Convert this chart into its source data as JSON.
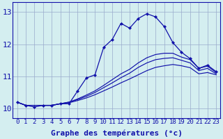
{
  "xlabel": "Graphe des températures (°c)",
  "bg_color": "#d4eef0",
  "grid_color": "#99aacc",
  "line_color": "#1111aa",
  "xlim": [
    -0.5,
    23.5
  ],
  "ylim": [
    9.7,
    13.3
  ],
  "yticks": [
    10,
    11,
    12,
    13
  ],
  "xticks": [
    0,
    1,
    2,
    3,
    4,
    5,
    6,
    7,
    8,
    9,
    10,
    11,
    12,
    13,
    14,
    15,
    16,
    17,
    18,
    19,
    20,
    21,
    22,
    23
  ],
  "series": [
    [
      10.2,
      10.1,
      10.05,
      10.1,
      10.1,
      10.15,
      10.15,
      10.55,
      10.95,
      11.05,
      11.9,
      12.15,
      12.65,
      12.5,
      12.8,
      12.95,
      12.85,
      12.55,
      12.05,
      11.75,
      11.55,
      11.25,
      11.35,
      11.15
    ],
    [
      10.2,
      10.1,
      10.1,
      10.1,
      10.1,
      10.15,
      10.2,
      10.3,
      10.42,
      10.55,
      10.72,
      10.9,
      11.08,
      11.22,
      11.42,
      11.58,
      11.68,
      11.72,
      11.72,
      11.6,
      11.52,
      11.25,
      11.32,
      11.12
    ],
    [
      10.2,
      10.1,
      10.1,
      10.1,
      10.1,
      10.15,
      10.2,
      10.28,
      10.38,
      10.5,
      10.65,
      10.8,
      10.96,
      11.1,
      11.28,
      11.42,
      11.52,
      11.56,
      11.58,
      11.5,
      11.42,
      11.18,
      11.25,
      11.08
    ],
    [
      10.2,
      10.1,
      10.1,
      10.1,
      10.1,
      10.15,
      10.18,
      10.25,
      10.33,
      10.43,
      10.55,
      10.67,
      10.8,
      10.92,
      11.05,
      11.18,
      11.28,
      11.33,
      11.37,
      11.33,
      11.27,
      11.08,
      11.12,
      11.05
    ]
  ],
  "xlabel_fontsize": 8,
  "tick_fontsize": 6.5,
  "ytick_fontsize": 8
}
